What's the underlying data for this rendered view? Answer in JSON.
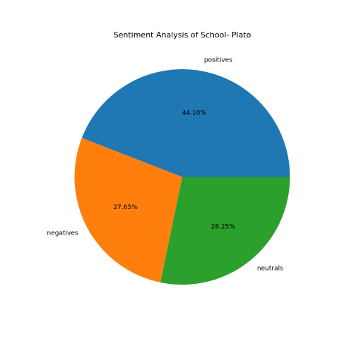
{
  "chart_data": {
    "type": "pie",
    "title": "Sentiment Analysis of School- Plato",
    "labels": [
      "positives",
      "negatives",
      "neutrals"
    ],
    "values": [
      44.1,
      27.65,
      28.25
    ],
    "percent_labels": [
      "44.10%",
      "27.65%",
      "28.25%"
    ],
    "colors": [
      "#1f77b4",
      "#ff7f0e",
      "#2ca02c"
    ],
    "start_angle_deg": 0,
    "direction": "counterclockwise"
  }
}
